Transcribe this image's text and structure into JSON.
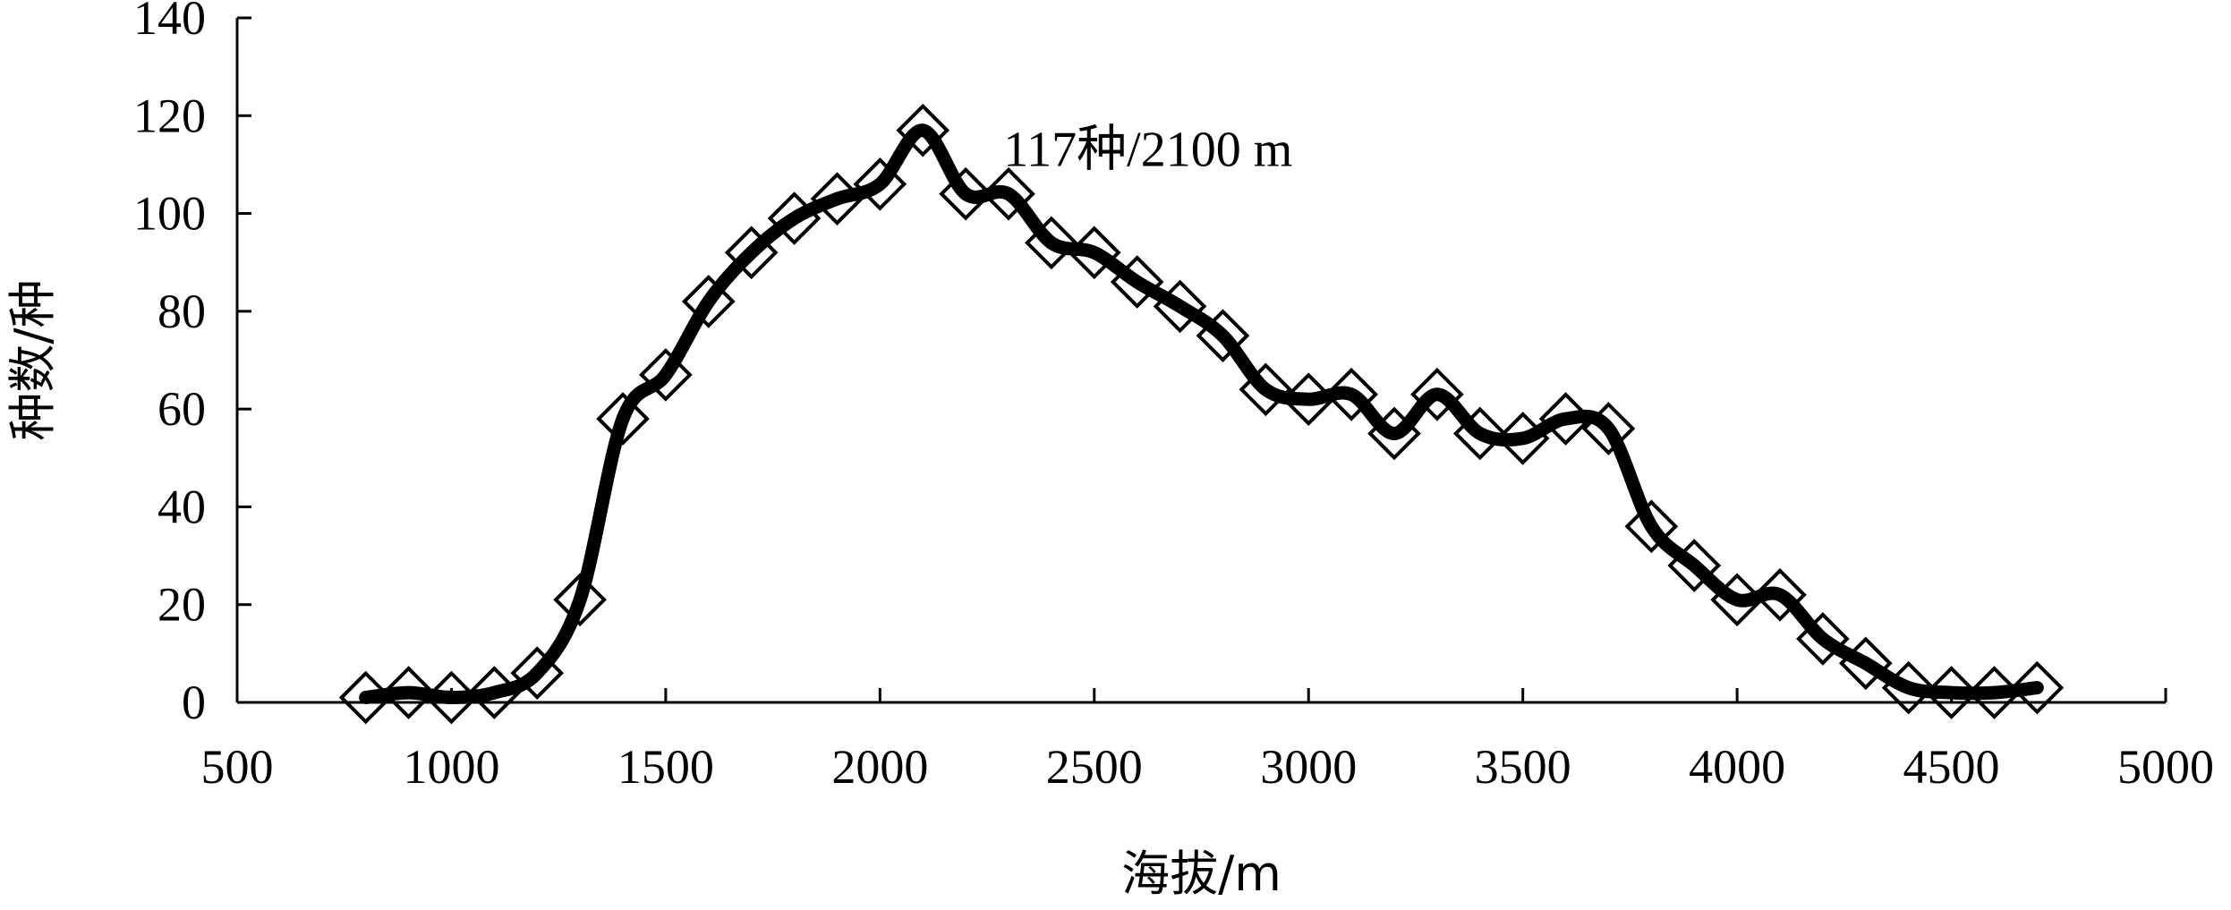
{
  "chart_data": {
    "type": "line",
    "title": "",
    "xlabel": "海拔/m",
    "ylabel": "种数/种",
    "xlim": [
      500,
      5000
    ],
    "ylim": [
      0,
      140
    ],
    "x_ticks": [
      "500",
      "1000",
      "1500",
      "2000",
      "2500",
      "3000",
      "3500",
      "4000",
      "4500",
      "5000"
    ],
    "y_ticks": [
      "0",
      "20",
      "40",
      "60",
      "80",
      "100",
      "120",
      "140"
    ],
    "grid": false,
    "legend": "none",
    "marker": "diamond",
    "color": "#000000",
    "annotation": {
      "text": "117种/2100 m",
      "x": 2100,
      "y": 117
    },
    "series": [
      {
        "x": [
          800,
          900,
          1000,
          1100,
          1200,
          1300,
          1400,
          1500,
          1600,
          1700,
          1800,
          1900,
          2000,
          2100,
          2200,
          2300,
          2400,
          2500,
          2600,
          2700,
          2800,
          2900,
          3000,
          3100,
          3200,
          3300,
          3400,
          3500,
          3600,
          3700,
          3800,
          3900,
          4000,
          4100,
          4200,
          4300,
          4400,
          4500,
          4600,
          4700
        ],
        "values": [
          1,
          2,
          1,
          2,
          6,
          21,
          58,
          67,
          82,
          92,
          99,
          103,
          106,
          117,
          104,
          104,
          94,
          92,
          86,
          81,
          75,
          64,
          62,
          63,
          55,
          63,
          55,
          54,
          58,
          56,
          36,
          28,
          21,
          22,
          13,
          8,
          3,
          2,
          2,
          3
        ]
      }
    ]
  }
}
